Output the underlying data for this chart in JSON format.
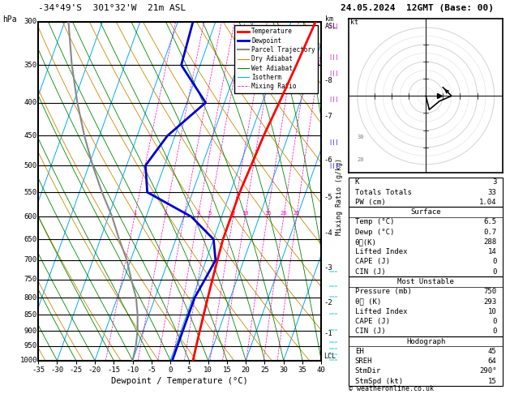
{
  "title_left": "-34°49'S  301°32'W  21m ASL",
  "title_right": "24.05.2024  12GMT (Base: 00)",
  "xlabel": "Dewpoint / Temperature (°C)",
  "pressure_levels": [
    300,
    350,
    400,
    450,
    500,
    550,
    600,
    650,
    700,
    750,
    800,
    850,
    900,
    950,
    1000
  ],
  "temp_x": [
    6.5,
    5.5,
    4.5,
    3.5,
    3.0,
    2.5,
    2.5,
    2.5,
    3.0,
    3.5,
    4.0,
    4.5,
    5.0,
    5.5,
    6.0
  ],
  "temp_p": [
    300,
    350,
    400,
    450,
    500,
    550,
    600,
    650,
    700,
    750,
    800,
    850,
    900,
    950,
    1000
  ],
  "dewp_x": [
    -26.0,
    -25.0,
    -15.0,
    -22.0,
    -25.0,
    -22.0,
    -8.0,
    0.0,
    2.5,
    1.5,
    0.5,
    0.5,
    0.5,
    0.5,
    0.5
  ],
  "dewp_p": [
    300,
    350,
    400,
    450,
    500,
    550,
    600,
    650,
    700,
    750,
    800,
    850,
    900,
    950,
    1000
  ],
  "parcel_x": [
    -10.0,
    -10.5,
    -11.5,
    -13.0,
    -15.0,
    -18.0,
    -21.0,
    -25.0,
    -29.0,
    -34.0,
    -39.0,
    -44.0,
    -49.0,
    -54.0,
    -59.0
  ],
  "parcel_p": [
    1000,
    950,
    900,
    850,
    800,
    750,
    700,
    650,
    600,
    550,
    500,
    450,
    400,
    350,
    300
  ],
  "temp_color": "#ff0000",
  "dewp_color": "#0000cc",
  "parcel_color": "#888888",
  "dry_adiabat_color": "#cc8800",
  "wet_adiabat_color": "#008800",
  "isotherm_color": "#00aaff",
  "mixing_ratio_color": "#ff00cc",
  "background_color": "#ffffff",
  "xlim": [
    -35,
    40
  ],
  "pressure_min": 300,
  "pressure_max": 1000,
  "skew_factor": 32,
  "mixing_ratio_vals": [
    1,
    2,
    3,
    4,
    5,
    8,
    10,
    15,
    20,
    25
  ],
  "km_labels": [
    8,
    7,
    6,
    5,
    4,
    3,
    2,
    1
  ],
  "km_pressures": [
    370,
    420,
    490,
    560,
    635,
    720,
    815,
    910
  ],
  "lcl_pressure": 960,
  "stats_k": "3",
  "stats_tt": "33",
  "stats_pw": "1.04",
  "surf_temp": "6.5",
  "surf_dewp": "0.7",
  "surf_theta": "288",
  "surf_li": "14",
  "surf_cape": "0",
  "surf_cin": "0",
  "mu_pressure": "750",
  "mu_theta": "293",
  "mu_li": "10",
  "mu_cape": "0",
  "mu_cin": "0",
  "hodo_eh": "45",
  "hodo_sreh": "64",
  "hodo_stmdir": "290°",
  "hodo_stmspd": "15",
  "hodo_u": [
    0,
    2,
    8,
    15,
    12,
    10
  ],
  "hodo_v": [
    0,
    -8,
    -3,
    0,
    3,
    5
  ]
}
